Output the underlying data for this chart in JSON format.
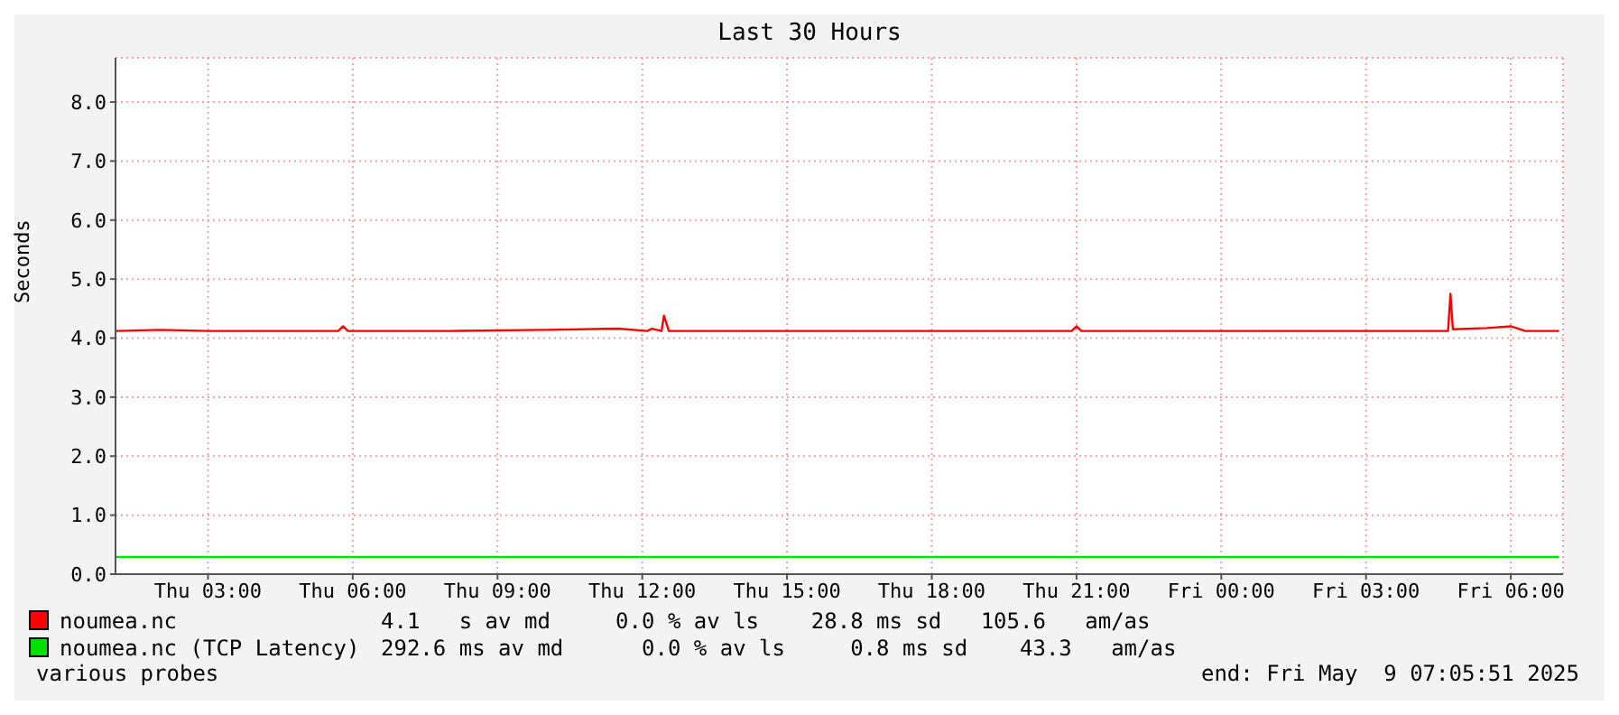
{
  "chart_data": {
    "type": "line",
    "title": "Last 30 Hours",
    "ylabel": "Seconds",
    "xlim": [
      "2025-05-08T01:05",
      "2025-05-09T07:05"
    ],
    "xticks": [
      {
        "value": "2025-05-08T03:00",
        "label": "Thu 03:00"
      },
      {
        "value": "2025-05-08T06:00",
        "label": "Thu 06:00"
      },
      {
        "value": "2025-05-08T09:00",
        "label": "Thu 09:00"
      },
      {
        "value": "2025-05-08T12:00",
        "label": "Thu 12:00"
      },
      {
        "value": "2025-05-08T15:00",
        "label": "Thu 15:00"
      },
      {
        "value": "2025-05-08T18:00",
        "label": "Thu 18:00"
      },
      {
        "value": "2025-05-08T21:00",
        "label": "Thu 21:00"
      },
      {
        "value": "2025-05-09T00:00",
        "label": "Fri 00:00"
      },
      {
        "value": "2025-05-09T03:00",
        "label": "Fri 03:00"
      },
      {
        "value": "2025-05-09T06:00",
        "label": "Fri 06:00"
      }
    ],
    "ylim": [
      0,
      8.75
    ],
    "yticks": [
      {
        "value": 0,
        "label": "0.0"
      },
      {
        "value": 1,
        "label": "1.0"
      },
      {
        "value": 2,
        "label": "2.0"
      },
      {
        "value": 3,
        "label": "3.0"
      },
      {
        "value": 4,
        "label": "4.0"
      },
      {
        "value": 5,
        "label": "5.0"
      },
      {
        "value": 6,
        "label": "6.0"
      },
      {
        "value": 7,
        "label": "7.0"
      },
      {
        "value": 8,
        "label": "8.0"
      }
    ],
    "grid": true,
    "legend": "bottom left",
    "series": [
      {
        "name": "noumea.nc",
        "color": "#ff0000",
        "x": [
          "2025-05-08T01:06",
          "2025-05-08T02:00",
          "2025-05-08T03:00",
          "2025-05-08T05:42",
          "2025-05-08T05:48",
          "2025-05-08T05:54",
          "2025-05-08T08:00",
          "2025-05-08T10:00",
          "2025-05-08T11:30",
          "2025-05-08T12:06",
          "2025-05-08T12:12",
          "2025-05-08T12:24",
          "2025-05-08T12:27",
          "2025-05-08T12:33",
          "2025-05-08T15:00",
          "2025-05-08T18:00",
          "2025-05-08T20:54",
          "2025-05-08T21:00",
          "2025-05-08T21:06",
          "2025-05-09T00:00",
          "2025-05-09T03:00",
          "2025-05-09T04:42",
          "2025-05-09T04:45",
          "2025-05-09T04:48",
          "2025-05-09T05:30",
          "2025-05-09T06:00",
          "2025-05-09T06:18",
          "2025-05-09T07:00"
        ],
        "values": [
          4.12,
          4.14,
          4.12,
          4.12,
          4.2,
          4.12,
          4.12,
          4.14,
          4.16,
          4.12,
          4.16,
          4.12,
          4.38,
          4.12,
          4.12,
          4.12,
          4.12,
          4.2,
          4.12,
          4.12,
          4.12,
          4.12,
          4.75,
          4.15,
          4.17,
          4.2,
          4.12,
          4.12
        ]
      },
      {
        "name": "noumea.nc (TCP Latency)",
        "color": "#00e000",
        "x": [
          "2025-05-08T01:06",
          "2025-05-08T12:00",
          "2025-05-09T07:00"
        ],
        "values": [
          0.29,
          0.29,
          0.29
        ]
      }
    ],
    "annotations": [
      "4.1   s av md     0.0 % av ls    28.8 ms sd   105.6   am/as",
      "292.6 ms av md      0.0 % av ls     0.8 ms sd    43.3   am/as",
      "various probes",
      "end: Fri May  9 07:05:51 2025"
    ]
  }
}
